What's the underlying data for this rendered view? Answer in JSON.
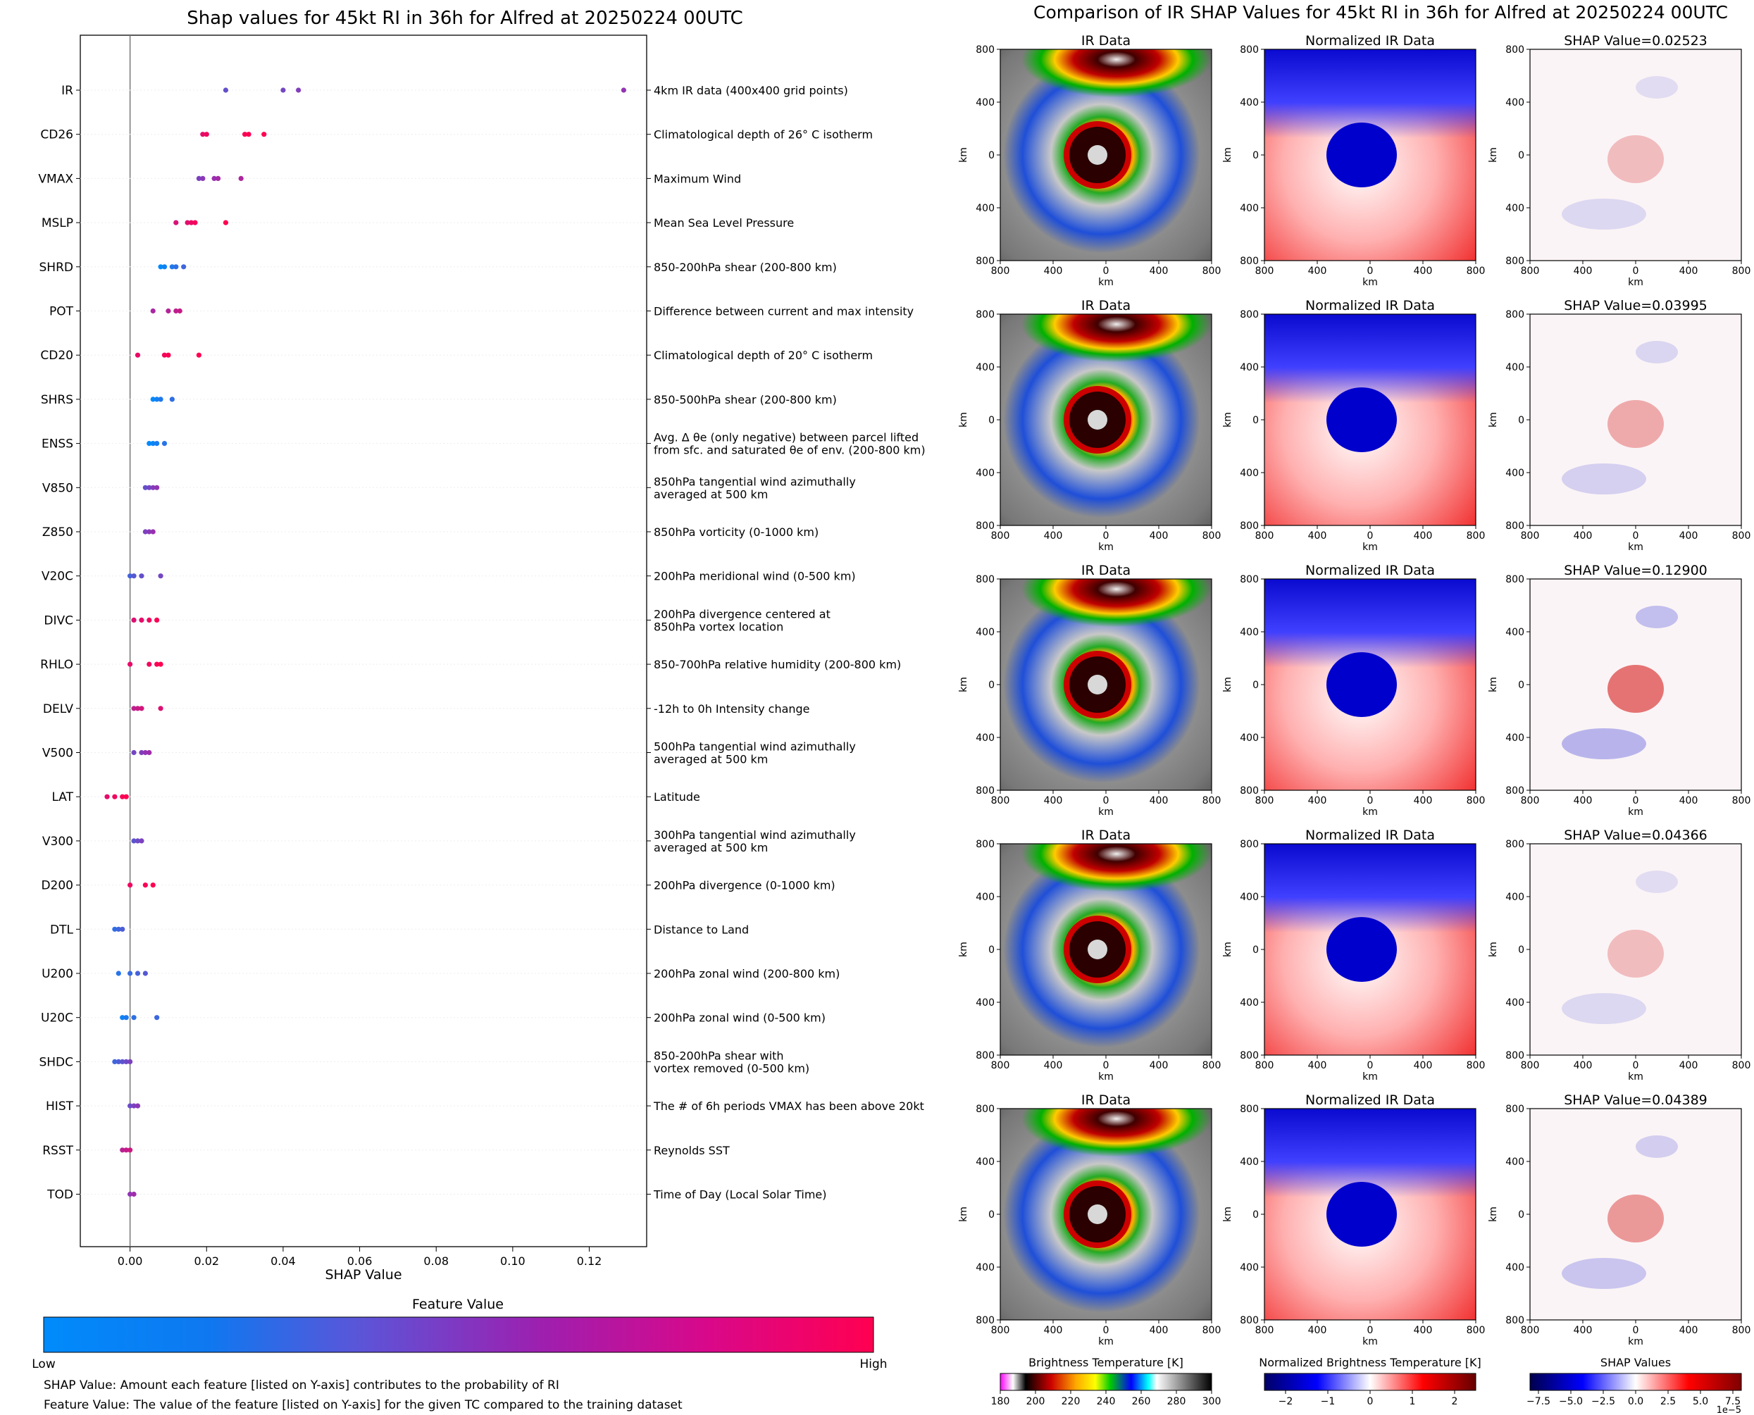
{
  "left_panel": {
    "title": "Shap values for 45kt RI in 36h for Alfred at 20250224 00UTC",
    "colorbar_title": "Feature Value",
    "colorbar_low": "Low",
    "colorbar_high": "High",
    "note_shap": "SHAP Value: Amount each feature [listed on Y-axis] contributes to the probability of RI",
    "note_feature": "Feature Value: The value of the feature [listed on Y-axis] for the given TC compared to the training dataset",
    "colors": {
      "low": "#008bfb",
      "high": "#ff0051",
      "mid": "#9a2fb0"
    }
  },
  "right_panel": {
    "title": "Comparison of IR SHAP Values for 45kt RI in 36h for Alfred at 20250224 00UTC",
    "col_titles": [
      "IR Data",
      "Normalized IR Data"
    ],
    "shap_title_prefix": "SHAP Value=",
    "shap_values": [
      "0.02523",
      "0.03995",
      "0.12900",
      "0.04366",
      "0.04389"
    ],
    "axis_label": "km",
    "tick_labels": [
      "800",
      "400",
      "0",
      "400",
      "800"
    ],
    "colorbars": [
      {
        "title": "Brightness Temperature [K]",
        "ticks": [
          "180",
          "200",
          "220",
          "240",
          "260",
          "280",
          "300"
        ]
      },
      {
        "title": "Normalized Brightness Temperature [K]",
        "ticks": [
          "−2",
          "−1",
          "0",
          "1",
          "2"
        ]
      },
      {
        "title": "SHAP Values",
        "ticks": [
          "−7.5",
          "−5.0",
          "−2.5",
          "0.0",
          "2.5",
          "5.0",
          "7.5"
        ],
        "offset": "1e−5"
      }
    ]
  },
  "chart_data": {
    "type": "scatter",
    "title": "Shap values for 45kt RI in 36h for Alfred at 20250224 00UTC",
    "xlabel": "SHAP Value",
    "xlim": [
      -0.013,
      0.135
    ],
    "xticks": [
      "0.00",
      "0.02",
      "0.04",
      "0.06",
      "0.08",
      "0.10",
      "0.12"
    ],
    "tick_values": [
      0,
      0.02,
      0.04,
      0.06,
      0.08,
      0.1,
      0.12
    ],
    "features": [
      {
        "name": "IR",
        "desc": [
          "4km IR data (400x400 grid points)"
        ],
        "values": [
          0.025,
          0.04,
          0.044,
          0.129
        ],
        "fv": 0.4
      },
      {
        "name": "CD26",
        "desc": [
          "Climatological depth of 26° C isotherm"
        ],
        "values": [
          0.019,
          0.02,
          0.03,
          0.031,
          0.035
        ],
        "fv": 0.97
      },
      {
        "name": "VMAX",
        "desc": [
          "Maximum Wind"
        ],
        "values": [
          0.018,
          0.019,
          0.022,
          0.023,
          0.029
        ],
        "fv": 0.5
      },
      {
        "name": "MSLP",
        "desc": [
          "Mean Sea Level Pressure"
        ],
        "values": [
          0.012,
          0.015,
          0.016,
          0.017,
          0.025
        ],
        "fv": 0.9
      },
      {
        "name": "SHRD",
        "desc": [
          "850-200hPa shear (200-800 km)"
        ],
        "values": [
          0.008,
          0.009,
          0.011,
          0.012,
          0.014
        ],
        "fv": 0.1
      },
      {
        "name": "POT",
        "desc": [
          "Difference between current and max intensity"
        ],
        "values": [
          0.006,
          0.01,
          0.012,
          0.013
        ],
        "fv": 0.65
      },
      {
        "name": "CD20",
        "desc": [
          "Climatological depth of 20° C isotherm"
        ],
        "values": [
          0.002,
          0.009,
          0.01,
          0.018
        ],
        "fv": 0.97
      },
      {
        "name": "SHRS",
        "desc": [
          "850-500hPa shear (200-800 km)"
        ],
        "values": [
          0.006,
          0.007,
          0.008,
          0.011
        ],
        "fv": 0.08
      },
      {
        "name": "ENSS",
        "desc": [
          "Avg. Δ θe (only negative) between parcel lifted",
          "from sfc. and saturated θe of env. (200-800 km)"
        ],
        "values": [
          0.005,
          0.006,
          0.007,
          0.009
        ],
        "fv": 0.05
      },
      {
        "name": "V850",
        "desc": [
          "850hPa tangential wind azimuthally",
          "averaged at 500 km"
        ],
        "values": [
          0.004,
          0.005,
          0.006,
          0.007
        ],
        "fv": 0.4
      },
      {
        "name": "Z850",
        "desc": [
          "850hPa vorticity (0-1000 km)"
        ],
        "values": [
          0.004,
          0.005,
          0.006
        ],
        "fv": 0.45
      },
      {
        "name": "V20C",
        "desc": [
          "200hPa meridional wind (0-500 km)"
        ],
        "values": [
          0.0,
          0.001,
          0.003,
          0.008
        ],
        "fv": 0.3
      },
      {
        "name": "DIVC",
        "desc": [
          "200hPa divergence centered at",
          "850hPa vortex location"
        ],
        "values": [
          0.001,
          0.003,
          0.005,
          0.007
        ],
        "fv": 0.9
      },
      {
        "name": "RHLO",
        "desc": [
          "850-700hPa relative humidity (200-800 km)"
        ],
        "values": [
          -0.0,
          0.005,
          0.007,
          0.008
        ],
        "fv": 0.95
      },
      {
        "name": "DELV",
        "desc": [
          "-12h to 0h Intensity change"
        ],
        "values": [
          0.001,
          0.002,
          0.003,
          0.008
        ],
        "fv": 0.75
      },
      {
        "name": "V500",
        "desc": [
          "500hPa tangential wind azimuthally",
          "averaged at 500 km"
        ],
        "values": [
          0.001,
          0.003,
          0.004,
          0.005
        ],
        "fv": 0.45
      },
      {
        "name": "LAT",
        "desc": [
          "Latitude"
        ],
        "values": [
          -0.006,
          -0.004,
          -0.002,
          -0.001
        ],
        "fv": 0.95
      },
      {
        "name": "V300",
        "desc": [
          "300hPa tangential wind azimuthally",
          "averaged at 500 km"
        ],
        "values": [
          0.001,
          0.002,
          0.003
        ],
        "fv": 0.35
      },
      {
        "name": "D200",
        "desc": [
          "200hPa divergence (0-1000 km)"
        ],
        "values": [
          -0.0,
          0.004,
          0.006
        ],
        "fv": 0.97
      },
      {
        "name": "DTL",
        "desc": [
          "Distance to Land"
        ],
        "values": [
          -0.004,
          -0.003,
          -0.002
        ],
        "fv": 0.2
      },
      {
        "name": "U200",
        "desc": [
          "200hPa zonal wind (200-800 km)"
        ],
        "values": [
          -0.003,
          0.0,
          0.002,
          0.004
        ],
        "fv": 0.2
      },
      {
        "name": "U20C",
        "desc": [
          "200hPa zonal wind (0-500 km)"
        ],
        "values": [
          -0.002,
          -0.001,
          0.001,
          0.007
        ],
        "fv": 0.12
      },
      {
        "name": "SHDC",
        "desc": [
          "850-200hPa shear with",
          "vortex removed (0-500 km)"
        ],
        "values": [
          -0.004,
          -0.003,
          -0.002,
          -0.001,
          0.0
        ],
        "fv": 0.3
      },
      {
        "name": "HIST",
        "desc": [
          "The # of 6h periods VMAX has been above 20kt"
        ],
        "values": [
          0.0,
          0.001,
          0.002
        ],
        "fv": 0.4
      },
      {
        "name": "RSST",
        "desc": [
          "Reynolds SST"
        ],
        "values": [
          -0.002,
          -0.001,
          0.0
        ],
        "fv": 0.7
      },
      {
        "name": "TOD",
        "desc": [
          "Time of Day (Local Solar Time)"
        ],
        "values": [
          0.0,
          0.001
        ],
        "fv": 0.5
      }
    ]
  }
}
